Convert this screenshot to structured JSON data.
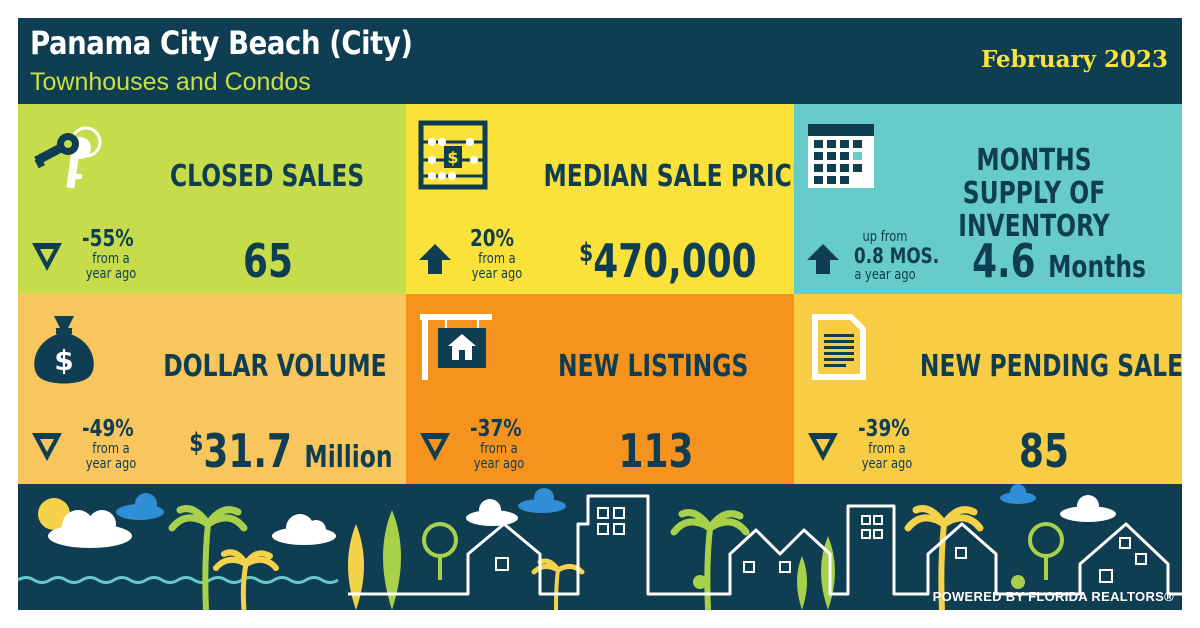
{
  "header": {
    "title": "Panama City Beach (City)",
    "subtitle": "Townhouses and Condos",
    "date": "February 2023"
  },
  "colors": {
    "navy": "#0f3d52",
    "lime": "#c6dc4b",
    "yellow": "#fbe23a",
    "teal": "#67cbc9",
    "peach": "#f8c65c",
    "orange": "#f6921e",
    "gold": "#f9cc45"
  },
  "tiles": {
    "closed_sales": {
      "title": "CLOSED SALES",
      "icon": "keys-icon",
      "direction": "down",
      "change": "-55%",
      "change_note_1": "from a",
      "change_note_2": "year ago",
      "value": "65"
    },
    "median_sale_price": {
      "title": "MEDIAN SALE PRICE",
      "icon": "abacus-icon",
      "direction": "up",
      "change": "20%",
      "change_note_1": "from a",
      "change_note_2": "year ago",
      "value_prefix": "$",
      "value": "470,000"
    },
    "months_supply": {
      "title_line1": "MONTHS SUPPLY OF",
      "title_line2": "INVENTORY",
      "icon": "calendar-icon",
      "direction": "up",
      "change_note_0": "up from",
      "change": "0.8 MOS.",
      "change_note_2": "a year ago",
      "value": "4.6",
      "value_unit": "Months"
    },
    "dollar_volume": {
      "title": "DOLLAR VOLUME",
      "icon": "money-bag-icon",
      "direction": "down",
      "change": "-49%",
      "change_note_1": "from a",
      "change_note_2": "year ago",
      "value_prefix": "$",
      "value": "31.7",
      "value_unit": "Million"
    },
    "new_listings": {
      "title": "NEW LISTINGS",
      "icon": "house-sign-icon",
      "direction": "down",
      "change": "-37%",
      "change_note_1": "from a",
      "change_note_2": "year ago",
      "value": "113"
    },
    "new_pending_sales": {
      "title": "NEW PENDING SALES",
      "icon": "document-icon",
      "direction": "down",
      "change": "-39%",
      "change_note_1": "from a",
      "change_note_2": "year ago",
      "value": "85"
    }
  },
  "footer": {
    "powered_by": "POWERED BY FLORIDA REALTORS®"
  }
}
